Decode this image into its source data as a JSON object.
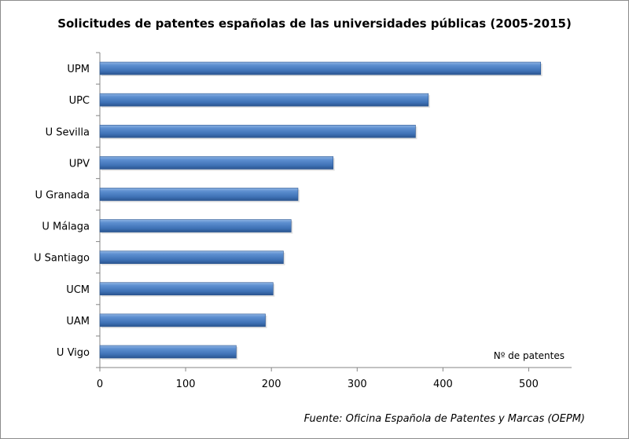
{
  "chart_data": {
    "type": "bar",
    "orientation": "horizontal",
    "title": "Solicitudes de patentes españolas de las universidades públicas (2005-2015)",
    "xlabel": "Nº de patentes",
    "ylabel": "",
    "categories": [
      "UPM",
      "UPC",
      "U Sevilla",
      "UPV",
      "U Granada",
      "U Málaga",
      "U Santiago",
      "UCM",
      "UAM",
      "U Vigo"
    ],
    "values": [
      514,
      383,
      368,
      272,
      231,
      223,
      214,
      202,
      193,
      159
    ],
    "xlim": [
      0,
      550
    ],
    "xticks": [
      0,
      100,
      200,
      300,
      400,
      500
    ],
    "grid": false,
    "legend": "none",
    "bar_color": "#4a7ebb",
    "source": "Fuente: Oficina Española de Patentes y Marcas (OEPM)"
  }
}
